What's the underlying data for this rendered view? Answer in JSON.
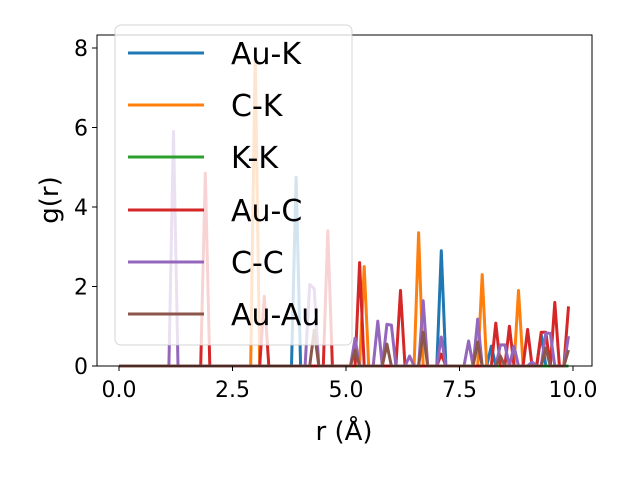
{
  "chart_data": {
    "type": "line",
    "title": "",
    "xlabel": "r (Å)",
    "ylabel": "g(r)",
    "xlim": [
      -0.5,
      10.4
    ],
    "ylim": [
      0,
      8.3
    ],
    "xticks": [
      "0.0",
      "2.5",
      "5.0",
      "7.5",
      "10.0"
    ],
    "xtick_values": [
      0,
      2.5,
      5,
      7.5,
      10
    ],
    "yticks": [
      "0",
      "2",
      "4",
      "6",
      "8"
    ],
    "ytick_values": [
      0,
      2,
      4,
      6,
      8
    ],
    "grid": false,
    "legend_placement": "upper-left",
    "series": [
      {
        "name": "Au-K",
        "color": "#1f77b4",
        "points": [
          [
            0,
            0
          ],
          [
            3.8,
            0
          ],
          [
            3.9,
            4.75
          ],
          [
            4.0,
            0
          ],
          [
            7.0,
            0
          ],
          [
            7.1,
            2.9
          ],
          [
            7.2,
            0
          ],
          [
            8.1,
            0
          ],
          [
            8.2,
            0.5
          ],
          [
            8.3,
            0
          ],
          [
            9.2,
            0
          ],
          [
            9.3,
            0.8
          ],
          [
            9.4,
            0
          ],
          [
            9.9,
            0
          ]
        ]
      },
      {
        "name": "C-K",
        "color": "#ff7f0e",
        "points": [
          [
            0,
            0
          ],
          [
            2.9,
            0
          ],
          [
            3.0,
            7.9
          ],
          [
            3.1,
            0
          ],
          [
            5.3,
            0
          ],
          [
            5.4,
            2.5
          ],
          [
            5.5,
            0
          ],
          [
            6.5,
            0
          ],
          [
            6.6,
            3.35
          ],
          [
            6.7,
            0
          ],
          [
            7.9,
            0
          ],
          [
            8.0,
            2.3
          ],
          [
            8.1,
            0
          ],
          [
            8.7,
            0
          ],
          [
            8.8,
            1.9
          ],
          [
            8.9,
            0
          ],
          [
            9.9,
            0
          ]
        ]
      },
      {
        "name": "K-K",
        "color": "#2ca02c",
        "points": [
          [
            0,
            0
          ],
          [
            9.9,
            0
          ]
        ]
      },
      {
        "name": "Au-C",
        "color": "#d62728",
        "points": [
          [
            0,
            0
          ],
          [
            1.8,
            0
          ],
          [
            1.9,
            4.85
          ],
          [
            2.0,
            0
          ],
          [
            3.1,
            0
          ],
          [
            3.2,
            1.75
          ],
          [
            3.3,
            0
          ],
          [
            4.5,
            0
          ],
          [
            4.6,
            3.4
          ],
          [
            4.7,
            0
          ],
          [
            5.2,
            0
          ],
          [
            5.3,
            2.6
          ],
          [
            5.4,
            0
          ],
          [
            6.1,
            0
          ],
          [
            6.2,
            1.9
          ],
          [
            6.3,
            0
          ],
          [
            7.0,
            0
          ],
          [
            7.1,
            0.3
          ],
          [
            7.2,
            0
          ],
          [
            8.2,
            0
          ],
          [
            8.3,
            1.08
          ],
          [
            8.4,
            0
          ],
          [
            8.5,
            0
          ],
          [
            8.6,
            1.0
          ],
          [
            8.7,
            0
          ],
          [
            8.9,
            0
          ],
          [
            9.0,
            0.92
          ],
          [
            9.1,
            0
          ],
          [
            9.2,
            0
          ],
          [
            9.3,
            0.85
          ],
          [
            9.4,
            0.85
          ],
          [
            9.5,
            0
          ],
          [
            9.6,
            1.6
          ],
          [
            9.7,
            0
          ],
          [
            9.8,
            0
          ],
          [
            9.9,
            1.5
          ]
        ]
      },
      {
        "name": "C-C",
        "color": "#9467bd",
        "points": [
          [
            0,
            0
          ],
          [
            1.1,
            0
          ],
          [
            1.2,
            5.9
          ],
          [
            1.3,
            0
          ],
          [
            4.1,
            0
          ],
          [
            4.2,
            2.05
          ],
          [
            4.3,
            1.95
          ],
          [
            4.4,
            0
          ],
          [
            5.1,
            0
          ],
          [
            5.2,
            0.7
          ],
          [
            5.3,
            0
          ],
          [
            5.6,
            0
          ],
          [
            5.7,
            1.13
          ],
          [
            5.8,
            0
          ],
          [
            5.9,
            1.05
          ],
          [
            6.0,
            1.03
          ],
          [
            6.1,
            0
          ],
          [
            6.3,
            0
          ],
          [
            6.4,
            0.25
          ],
          [
            6.5,
            0
          ],
          [
            6.6,
            0
          ],
          [
            6.7,
            1.64
          ],
          [
            6.8,
            0
          ],
          [
            7.0,
            0
          ],
          [
            7.1,
            0.73
          ],
          [
            7.2,
            0
          ],
          [
            7.6,
            0
          ],
          [
            7.7,
            0.63
          ],
          [
            7.8,
            0
          ],
          [
            7.9,
            1.18
          ],
          [
            8.0,
            0
          ],
          [
            8.3,
            0
          ],
          [
            8.4,
            0.53
          ],
          [
            8.5,
            0.53
          ],
          [
            8.6,
            0
          ],
          [
            8.7,
            0.5
          ],
          [
            8.8,
            0
          ],
          [
            9.0,
            0
          ],
          [
            9.1,
            0.1
          ],
          [
            9.2,
            0
          ],
          [
            9.3,
            0
          ],
          [
            9.4,
            0.83
          ],
          [
            9.5,
            0.82
          ],
          [
            9.6,
            0
          ],
          [
            9.8,
            0
          ],
          [
            9.9,
            0.75
          ]
        ]
      },
      {
        "name": "Au-Au",
        "color": "#8c564b",
        "points": [
          [
            0,
            0
          ],
          [
            4.2,
            0
          ],
          [
            4.3,
            0.9
          ],
          [
            4.4,
            0
          ],
          [
            5.1,
            0
          ],
          [
            5.2,
            0.4
          ],
          [
            5.3,
            0
          ],
          [
            5.8,
            0
          ],
          [
            5.9,
            0.55
          ],
          [
            6.0,
            0
          ],
          [
            6.6,
            0
          ],
          [
            6.7,
            0.85
          ],
          [
            6.8,
            0
          ],
          [
            7.8,
            0
          ],
          [
            7.9,
            0.6
          ],
          [
            8.0,
            0
          ],
          [
            8.3,
            0
          ],
          [
            8.4,
            0.25
          ],
          [
            8.5,
            0
          ],
          [
            9.3,
            0
          ],
          [
            9.4,
            0.45
          ],
          [
            9.5,
            0
          ],
          [
            9.8,
            0
          ],
          [
            9.9,
            0.4
          ]
        ]
      }
    ]
  }
}
